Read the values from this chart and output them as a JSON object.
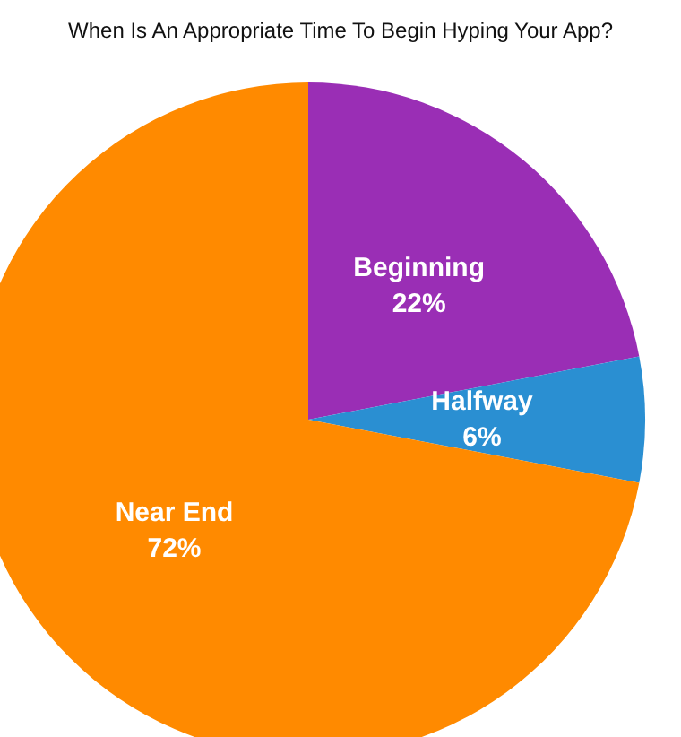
{
  "chart_data": {
    "type": "pie",
    "title": "When Is An Appropriate Time To Begin Hyping Your App?",
    "categories": [
      "Beginning",
      "Halfway",
      "Near End"
    ],
    "values": [
      22,
      6,
      72
    ],
    "value_labels": [
      "22%",
      "6%",
      "72%"
    ],
    "colors": [
      "#9a2eb5",
      "#2a8fd2",
      "#ff8a00"
    ],
    "legend": false
  }
}
